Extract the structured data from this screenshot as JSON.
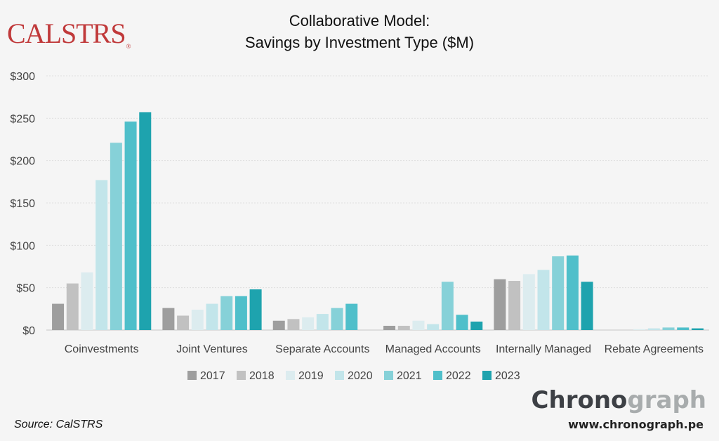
{
  "logo": {
    "text": "CALSTRS",
    "registered": "®"
  },
  "chart_data": {
    "type": "bar",
    "title": [
      "Collaborative Model:",
      "Savings by Investment Type ($M)"
    ],
    "categories": [
      "Coinvestments",
      "Joint Ventures",
      "Separate Accounts",
      "Managed Accounts",
      "Internally Managed",
      "Rebate Agreements"
    ],
    "yticks": [
      "$0",
      "$50",
      "$100",
      "$150",
      "$200",
      "$250",
      "$300"
    ],
    "ylim": [
      0,
      300
    ],
    "grid": true,
    "legend_position": "bottom-center",
    "series": [
      {
        "name": "2017",
        "color": "#9e9e9e",
        "values": [
          31,
          26,
          11,
          5,
          60,
          0
        ]
      },
      {
        "name": "2018",
        "color": "#c1c1c1",
        "values": [
          55,
          17,
          13,
          5,
          58,
          0
        ]
      },
      {
        "name": "2019",
        "color": "#dcecef",
        "values": [
          68,
          24,
          15,
          11,
          66,
          1
        ]
      },
      {
        "name": "2020",
        "color": "#c2e5ea",
        "values": [
          177,
          31,
          19,
          7,
          71,
          2
        ]
      },
      {
        "name": "2021",
        "color": "#86d1d8",
        "values": [
          221,
          40,
          26,
          57,
          87,
          3
        ]
      },
      {
        "name": "2022",
        "color": "#4fbfca",
        "values": [
          246,
          40,
          31,
          18,
          88,
          3
        ]
      },
      {
        "name": "2023",
        "color": "#1ea3ae",
        "values": [
          257,
          48,
          0,
          10,
          57,
          2
        ]
      }
    ]
  },
  "footer": {
    "source": "Source: CalSTRS",
    "brand_part1": "Chrono",
    "brand_part2": "graph",
    "url": "www.chronograph.pe"
  }
}
